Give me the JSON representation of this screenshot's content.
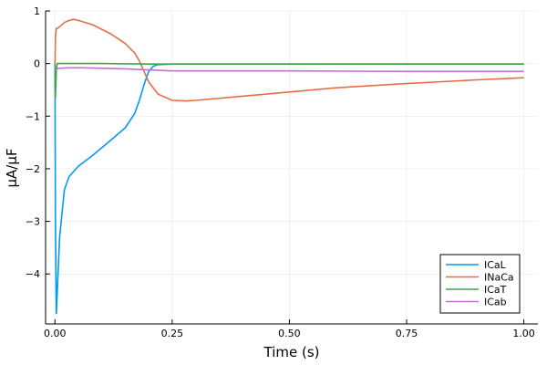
{
  "chart_data": {
    "type": "line",
    "xlabel": "Time (s)",
    "ylabel": "μA/μF",
    "xlim": [
      -0.02,
      1.03
    ],
    "ylim": [
      -4.95,
      1.0
    ],
    "x_ticks": [
      0.0,
      0.25,
      0.5,
      0.75,
      1.0
    ],
    "x_tick_labels": [
      "0.00",
      "0.25",
      "0.50",
      "0.75",
      "1.00"
    ],
    "y_ticks": [
      1,
      0,
      -1,
      -2,
      -3,
      -4
    ],
    "y_tick_labels": [
      "1",
      "0",
      "−1",
      "−2",
      "−3",
      "−4"
    ],
    "grid": true,
    "legend_position": "bottom-right",
    "series": [
      {
        "name": "ICaL",
        "color": "#009AFA",
        "x": [
          0.0,
          0.001,
          0.003,
          0.005,
          0.01,
          0.02,
          0.03,
          0.05,
          0.08,
          0.12,
          0.15,
          0.17,
          0.18,
          0.19,
          0.2,
          0.21,
          0.22,
          0.25,
          0.3,
          0.5,
          0.75,
          1.0
        ],
        "y": [
          -0.1,
          -3.0,
          -4.75,
          -4.3,
          -3.3,
          -2.4,
          -2.15,
          -1.95,
          -1.75,
          -1.45,
          -1.22,
          -0.95,
          -0.7,
          -0.4,
          -0.15,
          -0.05,
          -0.02,
          -0.01,
          -0.01,
          -0.01,
          -0.01,
          -0.01
        ]
      },
      {
        "name": "INaCa",
        "color": "#E36F47",
        "x": [
          0.0,
          0.001,
          0.003,
          0.006,
          0.01,
          0.02,
          0.03,
          0.04,
          0.05,
          0.08,
          0.12,
          0.15,
          0.17,
          0.18,
          0.19,
          0.2,
          0.22,
          0.25,
          0.28,
          0.3,
          0.4,
          0.5,
          0.6,
          0.75,
          0.9,
          1.0
        ],
        "y": [
          -0.05,
          0.5,
          0.67,
          0.67,
          0.7,
          0.78,
          0.82,
          0.84,
          0.82,
          0.74,
          0.56,
          0.38,
          0.2,
          0.05,
          -0.15,
          -0.35,
          -0.58,
          -0.7,
          -0.71,
          -0.7,
          -0.62,
          -0.54,
          -0.46,
          -0.38,
          -0.31,
          -0.27
        ]
      },
      {
        "name": "ICaT",
        "color": "#3EA44E",
        "x": [
          0.0,
          0.001,
          0.003,
          0.005,
          0.01,
          0.05,
          0.1,
          0.2,
          0.3,
          0.5,
          0.75,
          1.0
        ],
        "y": [
          0.0,
          -0.65,
          -0.1,
          0.0,
          0.0,
          0.0,
          0.0,
          -0.01,
          -0.01,
          -0.01,
          -0.01,
          -0.01
        ]
      },
      {
        "name": "ICab",
        "color": "#C271D2",
        "x": [
          0.0,
          0.002,
          0.005,
          0.01,
          0.03,
          0.06,
          0.1,
          0.15,
          0.2,
          0.25,
          0.3,
          0.5,
          0.75,
          1.0
        ],
        "y": [
          -0.12,
          -0.12,
          -0.1,
          -0.09,
          -0.08,
          -0.08,
          -0.09,
          -0.1,
          -0.12,
          -0.14,
          -0.14,
          -0.14,
          -0.15,
          -0.15
        ]
      }
    ]
  }
}
